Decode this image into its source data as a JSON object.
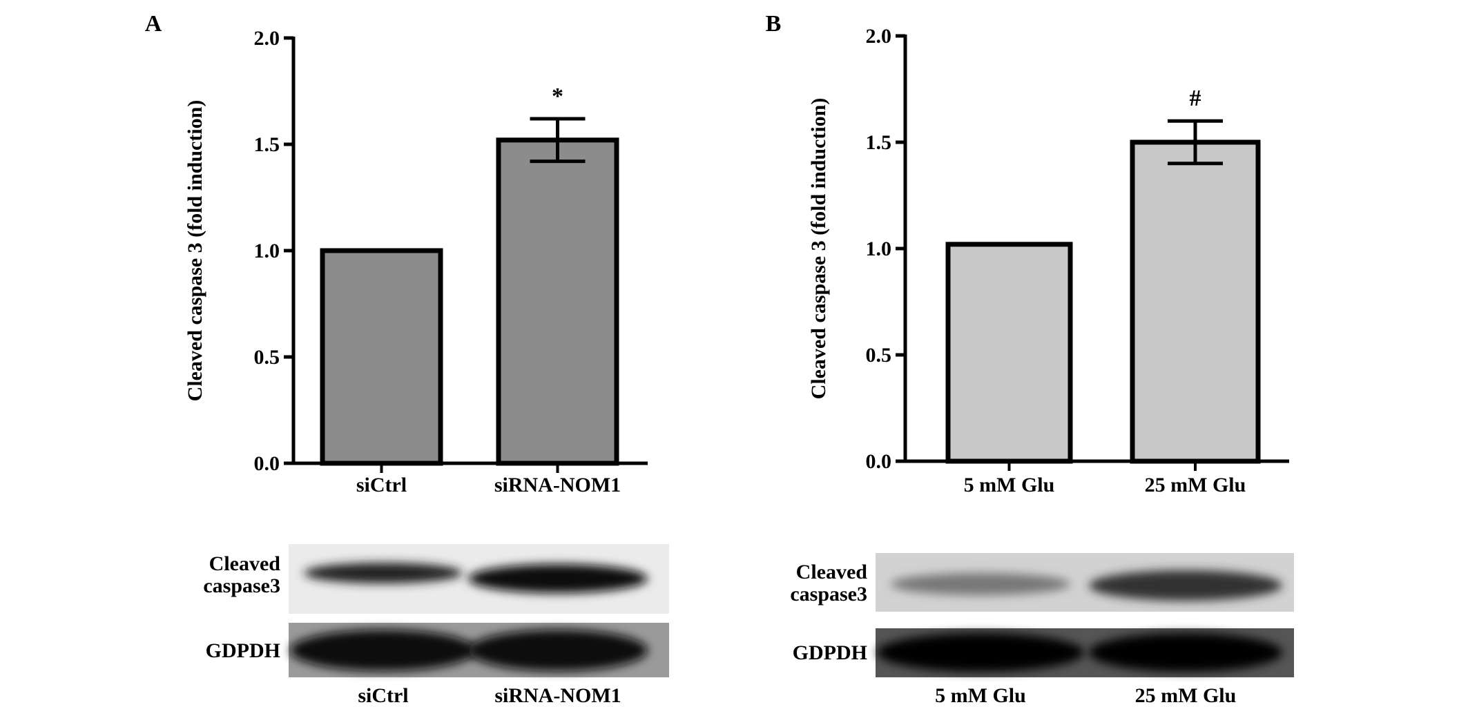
{
  "chart_data": [
    {
      "type": "bar",
      "panel": "A",
      "y_label": "Cleaved caspase 3 (fold induction)",
      "categories": [
        "siCtrl",
        "siRNA-NOM1"
      ],
      "values": [
        1.0,
        1.52
      ],
      "errors": [
        null,
        0.1
      ],
      "annotations": [
        null,
        "*"
      ],
      "color": "#8c8c8c",
      "ylim": [
        0,
        2
      ],
      "yticks": [
        {
          "value": 0,
          "label": "0.0"
        },
        0.5,
        {
          "value": 1,
          "label": "1.0"
        },
        1.5,
        {
          "value": 2,
          "label": "2.0"
        }
      ],
      "blot": {
        "rows": [
          "Cleaved caspase3",
          "GDPDH"
        ],
        "lanes": [
          "siCtrl",
          "siRNA-NOM1"
        ]
      }
    },
    {
      "type": "bar",
      "panel": "B",
      "y_label": "Cleaved caspase 3 (fold induction)",
      "categories": [
        "5 mM Glu",
        "25 mM Glu"
      ],
      "values": [
        1.02,
        1.5
      ],
      "errors": [
        null,
        0.1
      ],
      "annotations": [
        null,
        "#"
      ],
      "color": "#c8c8c8",
      "ylim": [
        0,
        2
      ],
      "yticks": [
        {
          "value": 0,
          "label": "0.0"
        },
        0.5,
        {
          "value": 1,
          "label": "1.0"
        },
        1.5,
        {
          "value": 2,
          "label": "2.0"
        }
      ],
      "blot": {
        "rows": [
          "Cleaved caspase3",
          "GDPDH"
        ],
        "lanes": [
          "5 mM Glu",
          "25 mM Glu"
        ]
      }
    }
  ]
}
